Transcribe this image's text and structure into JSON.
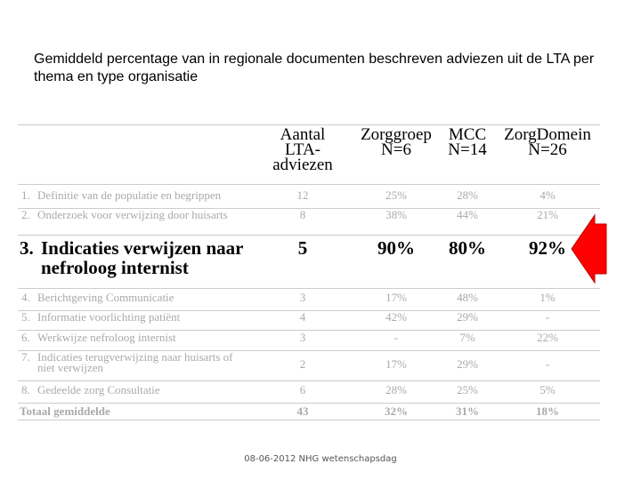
{
  "title": "Gemiddeld percentage van in regionale documenten beschreven adviezen uit de LTA per thema en type organisatie",
  "table": {
    "header": [
      "",
      "Aantal LTA-adviezen",
      "Zorggroep N=6",
      "MCC N=14",
      "ZorgDomein N=26"
    ],
    "rows": [
      [
        "1.",
        "Definitie van de populatie en begrippen",
        "12",
        "25%",
        "28%",
        "4%"
      ],
      [
        "2.",
        "Onderzoek voor verwijzing door huisarts",
        "8",
        "38%",
        "44%",
        "21%"
      ],
      [
        "3.",
        "Indicaties verwijzen naar nefroloog internist",
        "5",
        "90%",
        "80%",
        "92%"
      ],
      [
        "4.",
        "Berichtgeving Communicatie",
        "3",
        "17%",
        "48%",
        "1%"
      ],
      [
        "5.",
        "Informatie voorlichting patiënt",
        "4",
        "42%",
        "29%",
        "-"
      ],
      [
        "6.",
        "Werkwijze nefroloog internist",
        "3",
        "-",
        "7%",
        "22%"
      ],
      [
        "7.",
        "Indicaties terugverwijzing naar huisarts of niet verwijzen",
        "2",
        "17%",
        "29%",
        "-"
      ],
      [
        "8.",
        "Gedeelde zorg Consultatie",
        "6",
        "28%",
        "25%",
        "5%"
      ]
    ],
    "total": [
      "Totaal gemiddelde",
      "43",
      "32%",
      "31%",
      "18%"
    ]
  },
  "footer": "08-06-2012  NHG wetenschapsdag"
}
